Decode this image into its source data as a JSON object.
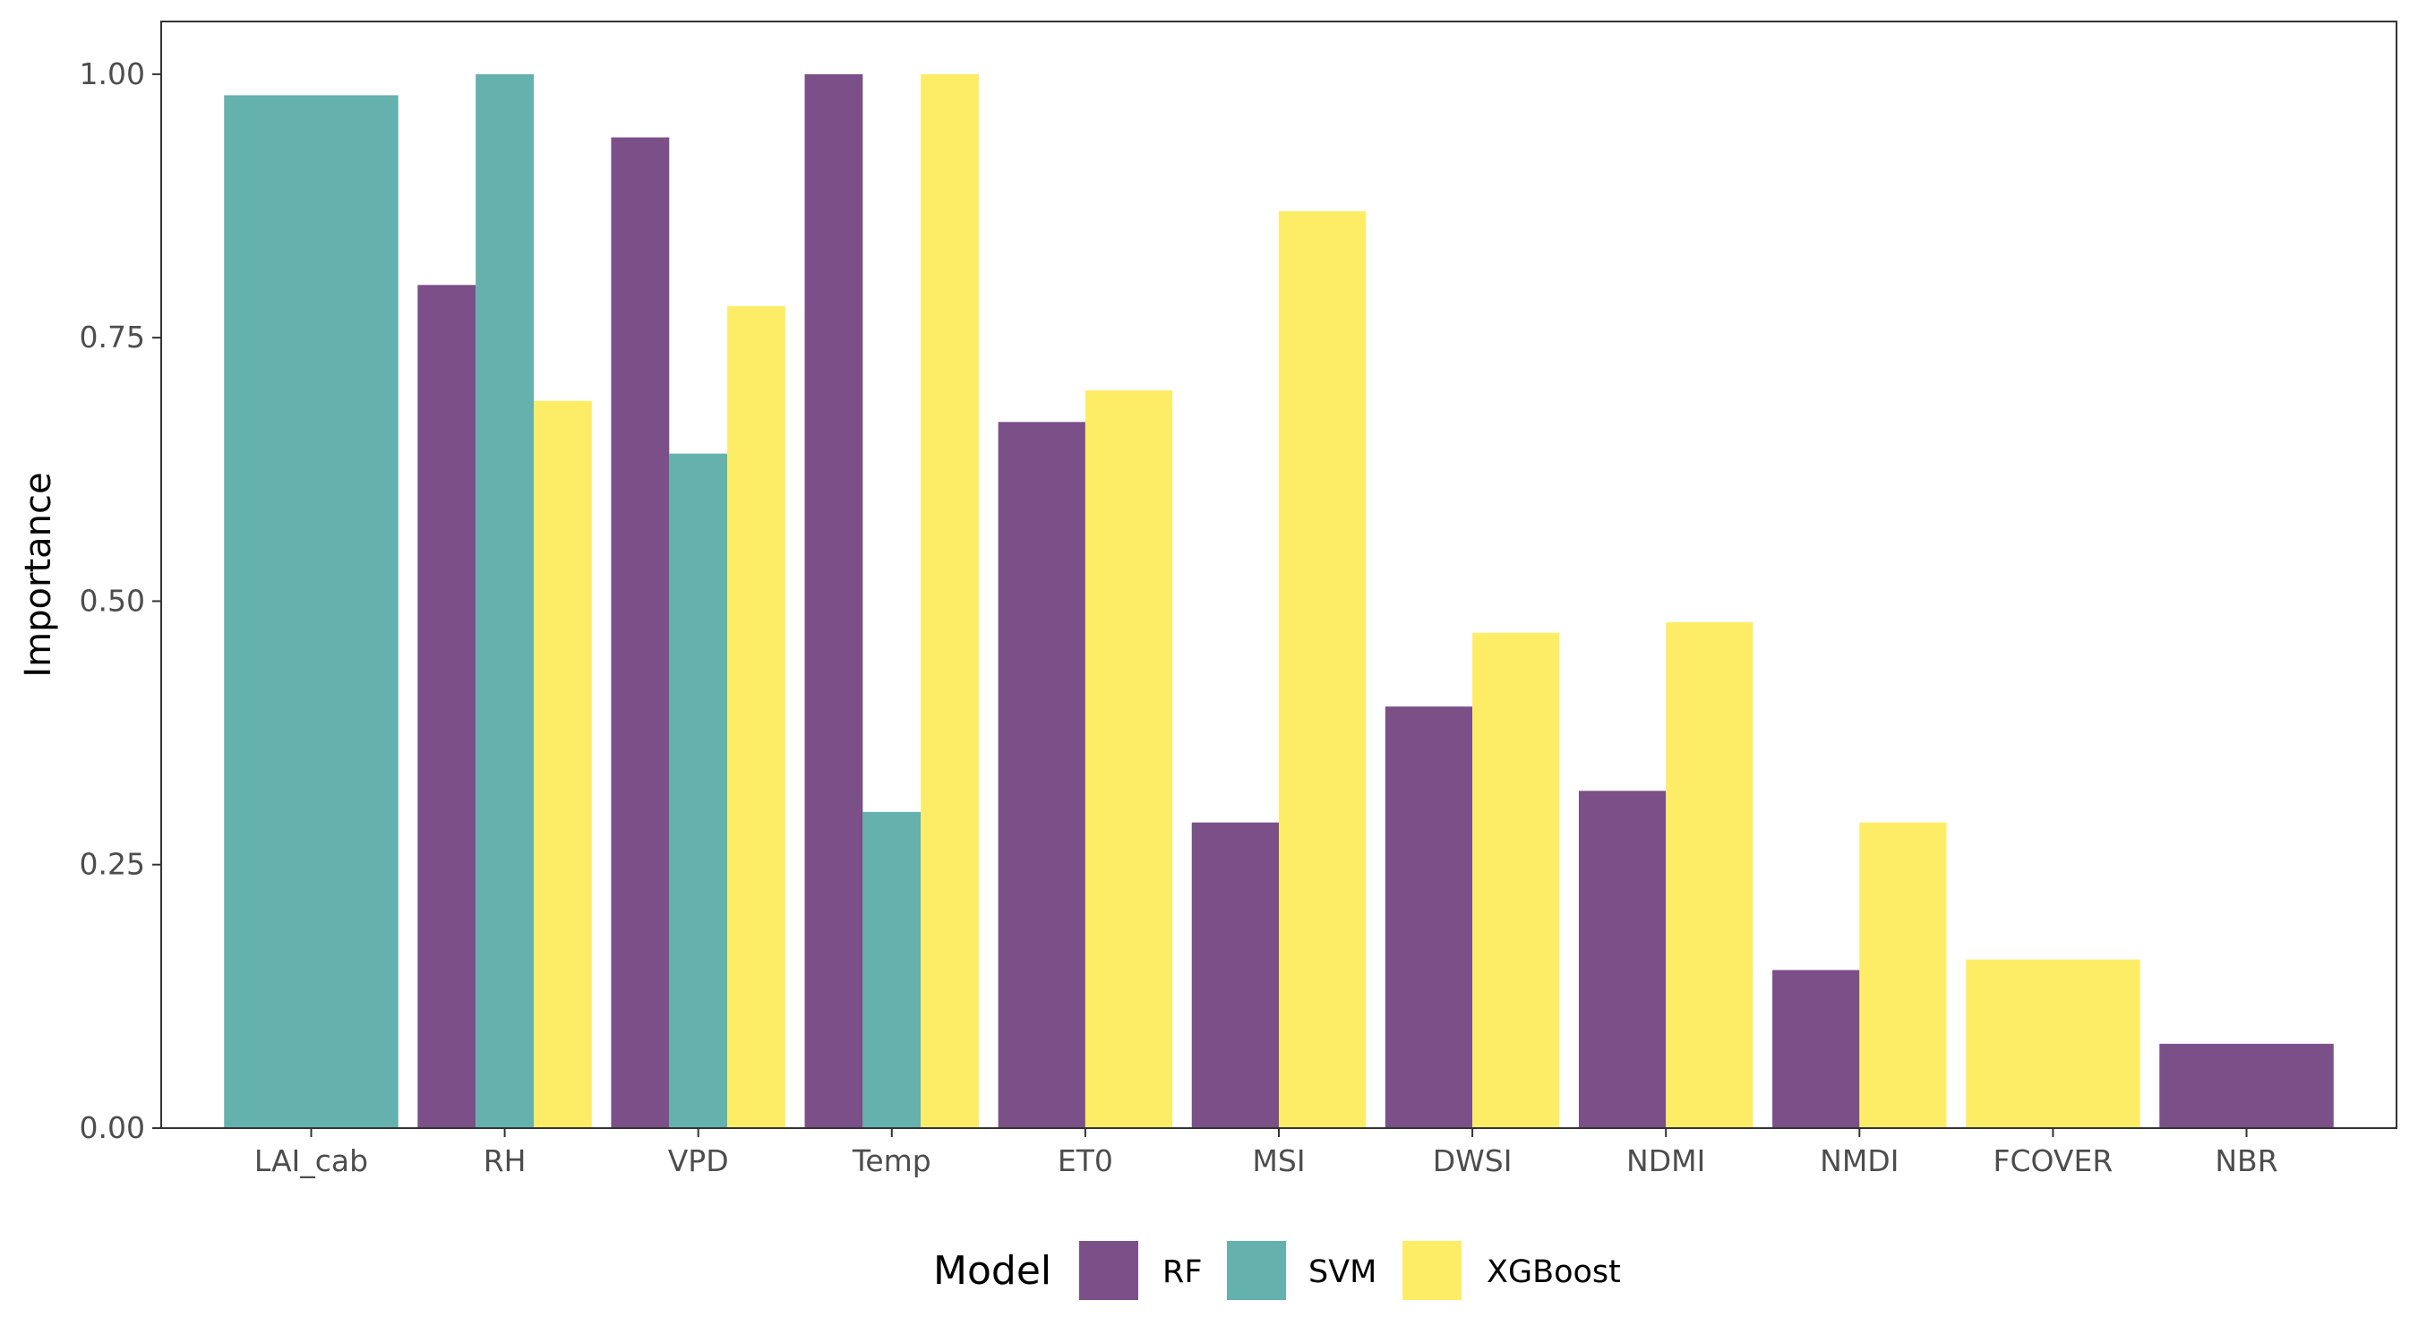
{
  "chart_data": {
    "type": "bar",
    "title": "",
    "xlabel": "",
    "ylabel": "Importance",
    "ylim": [
      0,
      1.05
    ],
    "yticks": [
      "0.00",
      "0.25",
      "0.50",
      "0.75",
      "1.00"
    ],
    "ytick_values": [
      0,
      0.25,
      0.5,
      0.75,
      1.0
    ],
    "grid": false,
    "legend": {
      "title": "Model",
      "placement": "bottom"
    },
    "categories": [
      "LAI_cab",
      "RH",
      "VPD",
      "Temp",
      "ET0",
      "MSI",
      "DWSI",
      "NDMI",
      "NMDI",
      "FCOVER",
      "NBR"
    ],
    "series": [
      {
        "name": "RF",
        "color": "#7b4f88",
        "values": [
          null,
          0.8,
          0.94,
          1.0,
          0.67,
          0.29,
          0.4,
          0.32,
          0.15,
          null,
          0.08
        ]
      },
      {
        "name": "SVM",
        "color": "#64b1ae",
        "values": [
          0.98,
          1.0,
          0.64,
          0.3,
          null,
          null,
          null,
          null,
          null,
          null,
          null
        ]
      },
      {
        "name": "XGBoost",
        "color": "#fded66",
        "values": [
          null,
          0.69,
          0.78,
          1.0,
          0.7,
          0.87,
          0.47,
          0.48,
          0.29,
          0.16,
          null
        ]
      }
    ]
  }
}
